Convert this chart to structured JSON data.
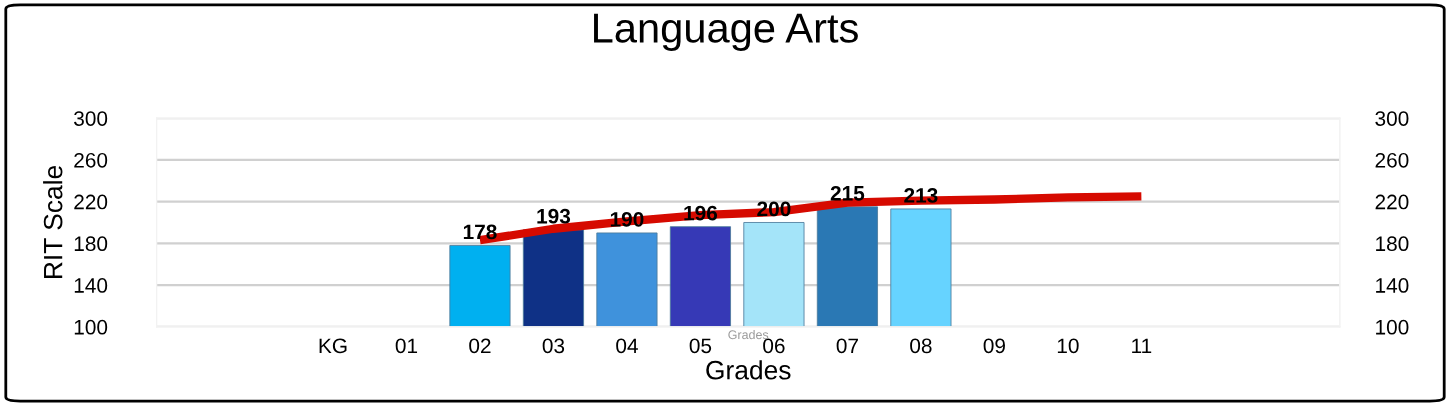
{
  "chart_data": {
    "type": "bar",
    "title": "Language Arts",
    "xlabel": "Grades",
    "ylabel": "RIT Scale",
    "categories": [
      null,
      null,
      "KG",
      "01",
      "02",
      "03",
      "04",
      "05",
      "06",
      "07",
      "08",
      "09",
      "10",
      "11",
      null,
      null
    ],
    "series": [
      {
        "values": [
          null,
          null,
          null,
          null,
          178,
          193,
          190,
          196,
          200,
          215,
          213,
          null,
          null,
          null,
          null,
          null
        ],
        "colors": [
          null,
          null,
          null,
          null,
          "#00b0f0",
          "#0f3186",
          "#3f92dc",
          "#3639b6",
          "#a4e4f9",
          "#2a78b4",
          "#66d3ff",
          null,
          null,
          null,
          null,
          null
        ]
      },
      {
        "type": "line",
        "color": "#d60a00",
        "values": [
          null,
          null,
          null,
          null,
          183,
          194,
          201,
          207,
          210,
          219,
          221,
          222,
          224,
          225,
          null,
          null
        ]
      }
    ],
    "value_labels": [
      null,
      null,
      null,
      null,
      "178",
      "193",
      "190",
      "196",
      "200",
      "215",
      "213",
      null,
      null,
      null,
      null,
      null
    ],
    "ylim": [
      100,
      300
    ],
    "yticks": [
      100,
      140,
      180,
      220,
      260,
      300
    ],
    "y2lim": [
      100,
      300
    ],
    "y2ticks": [
      100,
      140,
      180,
      220,
      260,
      300
    ],
    "grid": "y",
    "legend": false,
    "annotations": [
      "Grades"
    ]
  }
}
